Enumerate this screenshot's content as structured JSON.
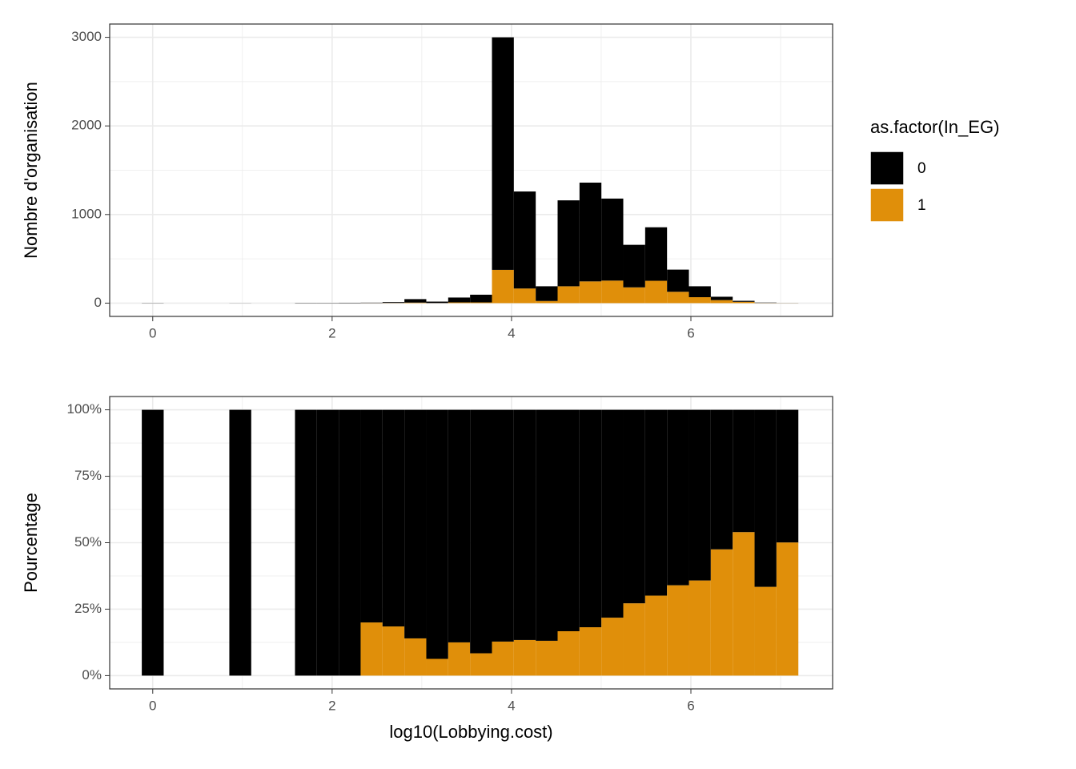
{
  "chart_data": [
    {
      "type": "histogram",
      "y_label": "Nombre d'organisation",
      "bins": [
        -0.122,
        0.122,
        0.366,
        0.61,
        0.854,
        1.098,
        1.342,
        1.586,
        1.83,
        2.074,
        2.318,
        2.562,
        2.806,
        3.05,
        3.294,
        3.538,
        3.782,
        4.026,
        4.27,
        4.514,
        4.758,
        5.002,
        5.246,
        5.49,
        5.734,
        5.978,
        6.222,
        6.466,
        6.71,
        6.954,
        7.198
      ],
      "series": [
        {
          "name": "0",
          "color": "#000000",
          "values": [
            2,
            0,
            0,
            0,
            1,
            0,
            0,
            3,
            3,
            4,
            4,
            9,
            39,
            16,
            55,
            87,
            2625,
            1095,
            166,
            970,
            1115,
            926,
            480,
            604,
            250,
            123,
            38,
            12,
            4,
            1
          ]
        },
        {
          "name": "1",
          "color": "#E08F0A",
          "values": [
            0,
            0,
            0,
            0,
            0,
            0,
            0,
            0,
            0,
            0,
            1,
            2,
            6,
            1,
            8,
            8,
            375,
            165,
            24,
            190,
            245,
            254,
            178,
            252,
            128,
            67,
            34,
            14,
            2,
            1
          ]
        }
      ],
      "legend_title": "as.factor(In_EG)",
      "legend": "right",
      "xlim": [
        -0.48,
        7.58
      ],
      "xticks": [
        0,
        2,
        4,
        6
      ],
      "ylim": [
        -150,
        3150
      ],
      "yticks": [
        0,
        1000,
        2000,
        3000
      ],
      "grid": true
    },
    {
      "type": "histogram",
      "x_label": "log10(Lobbying.cost)",
      "y_label": "Pourcentage",
      "bins": [
        -0.122,
        0.122,
        0.366,
        0.61,
        0.854,
        1.098,
        1.342,
        1.586,
        1.83,
        2.074,
        2.318,
        2.562,
        2.806,
        3.05,
        3.294,
        3.538,
        3.782,
        4.026,
        4.27,
        4.514,
        4.758,
        5.002,
        5.246,
        5.49,
        5.734,
        5.978,
        6.222,
        6.466,
        6.71,
        6.954,
        7.198
      ],
      "series": [
        {
          "color": "#000000",
          "values": [
            100,
            null,
            null,
            null,
            100,
            null,
            null,
            100,
            100,
            100,
            80,
            81.5,
            86,
            93.7,
            87.5,
            91.6,
            87.2,
            86.6,
            86.9,
            83.3,
            81.8,
            78.2,
            72.8,
            69.9,
            66,
            64.2,
            52.5,
            46,
            66.6,
            49.9
          ]
        },
        {
          "color": "#E08F0A",
          "values": [
            0,
            null,
            null,
            null,
            0,
            null,
            null,
            0,
            0,
            0,
            20,
            18.5,
            14,
            6.3,
            12.5,
            8.4,
            12.8,
            13.4,
            13.1,
            16.7,
            18.2,
            21.8,
            27.2,
            30.1,
            34,
            35.8,
            47.5,
            54,
            33.4,
            50.1
          ]
        }
      ],
      "xlim": [
        -0.48,
        7.58
      ],
      "xticks": [
        0,
        2,
        4,
        6
      ],
      "ylim": [
        -5,
        105
      ],
      "yticks": [
        {
          "value": 0,
          "label": "0%"
        },
        {
          "value": 25,
          "label": "25%"
        },
        {
          "value": 50,
          "label": "50%"
        },
        {
          "value": 75,
          "label": "75%"
        },
        {
          "value": 100,
          "label": "100%"
        }
      ],
      "grid": true
    }
  ]
}
